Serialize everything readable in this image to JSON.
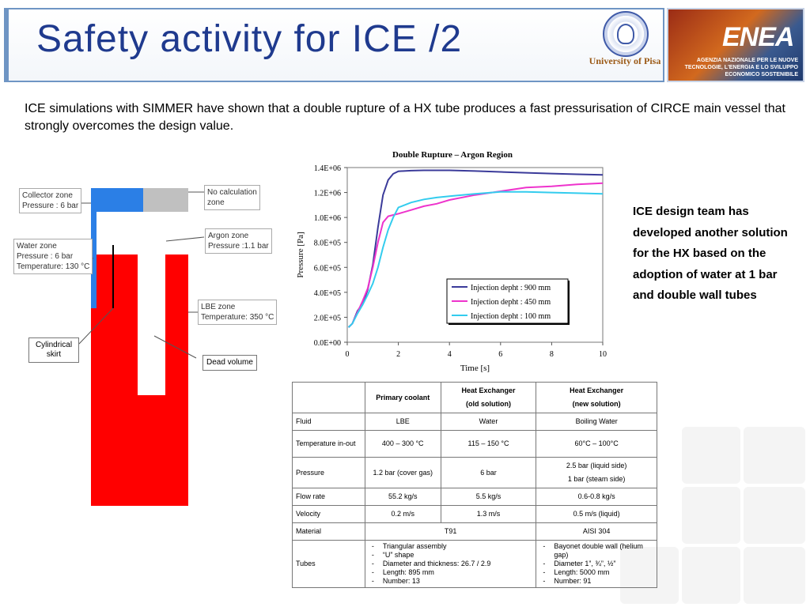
{
  "header": {
    "title": "Safety activity for ICE /2",
    "university_label": "University of Pisa",
    "enea_logo": "ENEA",
    "enea_text": "AGENZIA NAZIONALE PER LE NUOVE TECNOLOGIE, L'ENERGIA E LO SVILUPPO ECONOMICO SOSTENIBILE"
  },
  "intro_text": "ICE simulations with SIMMER have shown that a double rupture of a HX tube produces a fast pressurisation of CIRCE main vessel that strongly overcomes the design value.",
  "right_text": "ICE design team has developed another solution for the HX based on the adoption of water at 1 bar and double wall tubes",
  "diagram": {
    "collector": {
      "line1": "Collector zone",
      "line2": "Pressure : 6 bar"
    },
    "water": {
      "line1": "Water zone",
      "line2": "Pressure : 6 bar",
      "line3": "Temperature: 130 °C"
    },
    "no_calc": {
      "line1": "No calculation",
      "line2": "zone"
    },
    "argon": {
      "line1": "Argon  zone",
      "line2": "Pressure :1.1 bar"
    },
    "lbe": {
      "line1": "LBE  zone",
      "line2": "Temperature: 350 °C"
    },
    "skirt": "Cylindrical skirt",
    "dead_volume": "Dead volume",
    "colors": {
      "lbe": "#ff0000",
      "collector": "#2b7fe6",
      "no_calc": "#c0c0c0"
    }
  },
  "chart_data": {
    "type": "line",
    "title": "Double Rupture – Argon Region",
    "xlabel": "Time [s]",
    "ylabel": "Pressure [Pa]",
    "xlim": [
      0,
      10
    ],
    "ylim": [
      0,
      1400000
    ],
    "x_ticks": [
      "0",
      "2",
      "4",
      "6",
      "8",
      "10"
    ],
    "y_ticks": [
      "0.0E+00",
      "2.0E+05",
      "4.0E+05",
      "6.0E+05",
      "8.0E+05",
      "1.0E+06",
      "1.2E+06",
      "1.4E+06"
    ],
    "legend_position": "bottom-right",
    "series": [
      {
        "name": "Injection depht : 900 mm",
        "color": "#3b3b9a",
        "x": [
          0.05,
          0.2,
          0.4,
          0.6,
          0.8,
          1.0,
          1.2,
          1.4,
          1.6,
          1.8,
          2.0,
          2.5,
          3.0,
          4.0,
          5.0,
          6.0,
          7.0,
          8.0,
          9.0,
          10.0
        ],
        "y": [
          120000,
          150000,
          250000,
          310000,
          420000,
          620000,
          920000,
          1180000,
          1300000,
          1350000,
          1370000,
          1375000,
          1378000,
          1378000,
          1372000,
          1365000,
          1358000,
          1352000,
          1346000,
          1342000
        ]
      },
      {
        "name": "Injection depht : 450 mm",
        "color": "#ee33cc",
        "x": [
          0.05,
          0.2,
          0.4,
          0.6,
          0.8,
          1.0,
          1.2,
          1.4,
          1.6,
          1.8,
          2.0,
          2.5,
          3.0,
          3.5,
          4.0,
          5.0,
          6.0,
          7.0,
          8.0,
          9.0,
          10.0
        ],
        "y": [
          120000,
          150000,
          240000,
          330000,
          430000,
          600000,
          800000,
          960000,
          1010000,
          1020000,
          1030000,
          1060000,
          1090000,
          1110000,
          1140000,
          1180000,
          1210000,
          1240000,
          1250000,
          1265000,
          1275000
        ]
      },
      {
        "name": "Injection depht : 100 mm",
        "color": "#33ccee",
        "x": [
          0.05,
          0.2,
          0.4,
          0.6,
          0.8,
          1.0,
          1.2,
          1.4,
          1.6,
          1.8,
          2.0,
          2.5,
          3.0,
          3.5,
          4.0,
          5.0,
          6.0,
          7.0,
          8.0,
          9.0,
          10.0
        ],
        "y": [
          120000,
          150000,
          230000,
          300000,
          380000,
          470000,
          600000,
          760000,
          900000,
          1000000,
          1080000,
          1120000,
          1145000,
          1160000,
          1170000,
          1190000,
          1205000,
          1205000,
          1200000,
          1195000,
          1190000
        ]
      }
    ]
  },
  "table": {
    "headers": [
      "",
      "Primary coolant",
      "Heat Exchanger\n(old solution)",
      "Heat Exchanger\n(new solution)"
    ],
    "rows": [
      {
        "label": "Fluid",
        "c1": "LBE",
        "c2": "Water",
        "c3": "Boiling Water"
      },
      {
        "label": "Temperature in-out",
        "c1": "400 – 300 °C",
        "c2": "115 – 150 °C",
        "c3": "60°C – 100°C"
      },
      {
        "label": "Pressure",
        "c1": "1.2 bar (cover gas)",
        "c2": "6 bar",
        "c3a": "2.5 bar (liquid side)",
        "c3b": "1 bar (steam side)"
      },
      {
        "label": "Flow rate",
        "c1": "55.2 kg/s",
        "c2": "5.5 kg/s",
        "c3": "0.6-0.8 kg/s"
      },
      {
        "label": "Velocity",
        "c1": "0.2 m/s",
        "c2": "1.3 m/s",
        "c3": "0.5 m/s (liquid)"
      },
      {
        "label": "Material",
        "c12": "T91",
        "c3": "AISI 304"
      }
    ],
    "tubes": {
      "label": "Tubes",
      "old": [
        "Triangular assembly",
        "“U” shape",
        "Diameter and thickness: 26.7 / 2.9",
        "Length: 895 mm",
        "Number: 13"
      ],
      "new": [
        "Bayonet double wall (helium gap)",
        "Diameter 1”, ¾”, ½”",
        "Length: 5000 mm",
        "Number: 91"
      ]
    }
  }
}
